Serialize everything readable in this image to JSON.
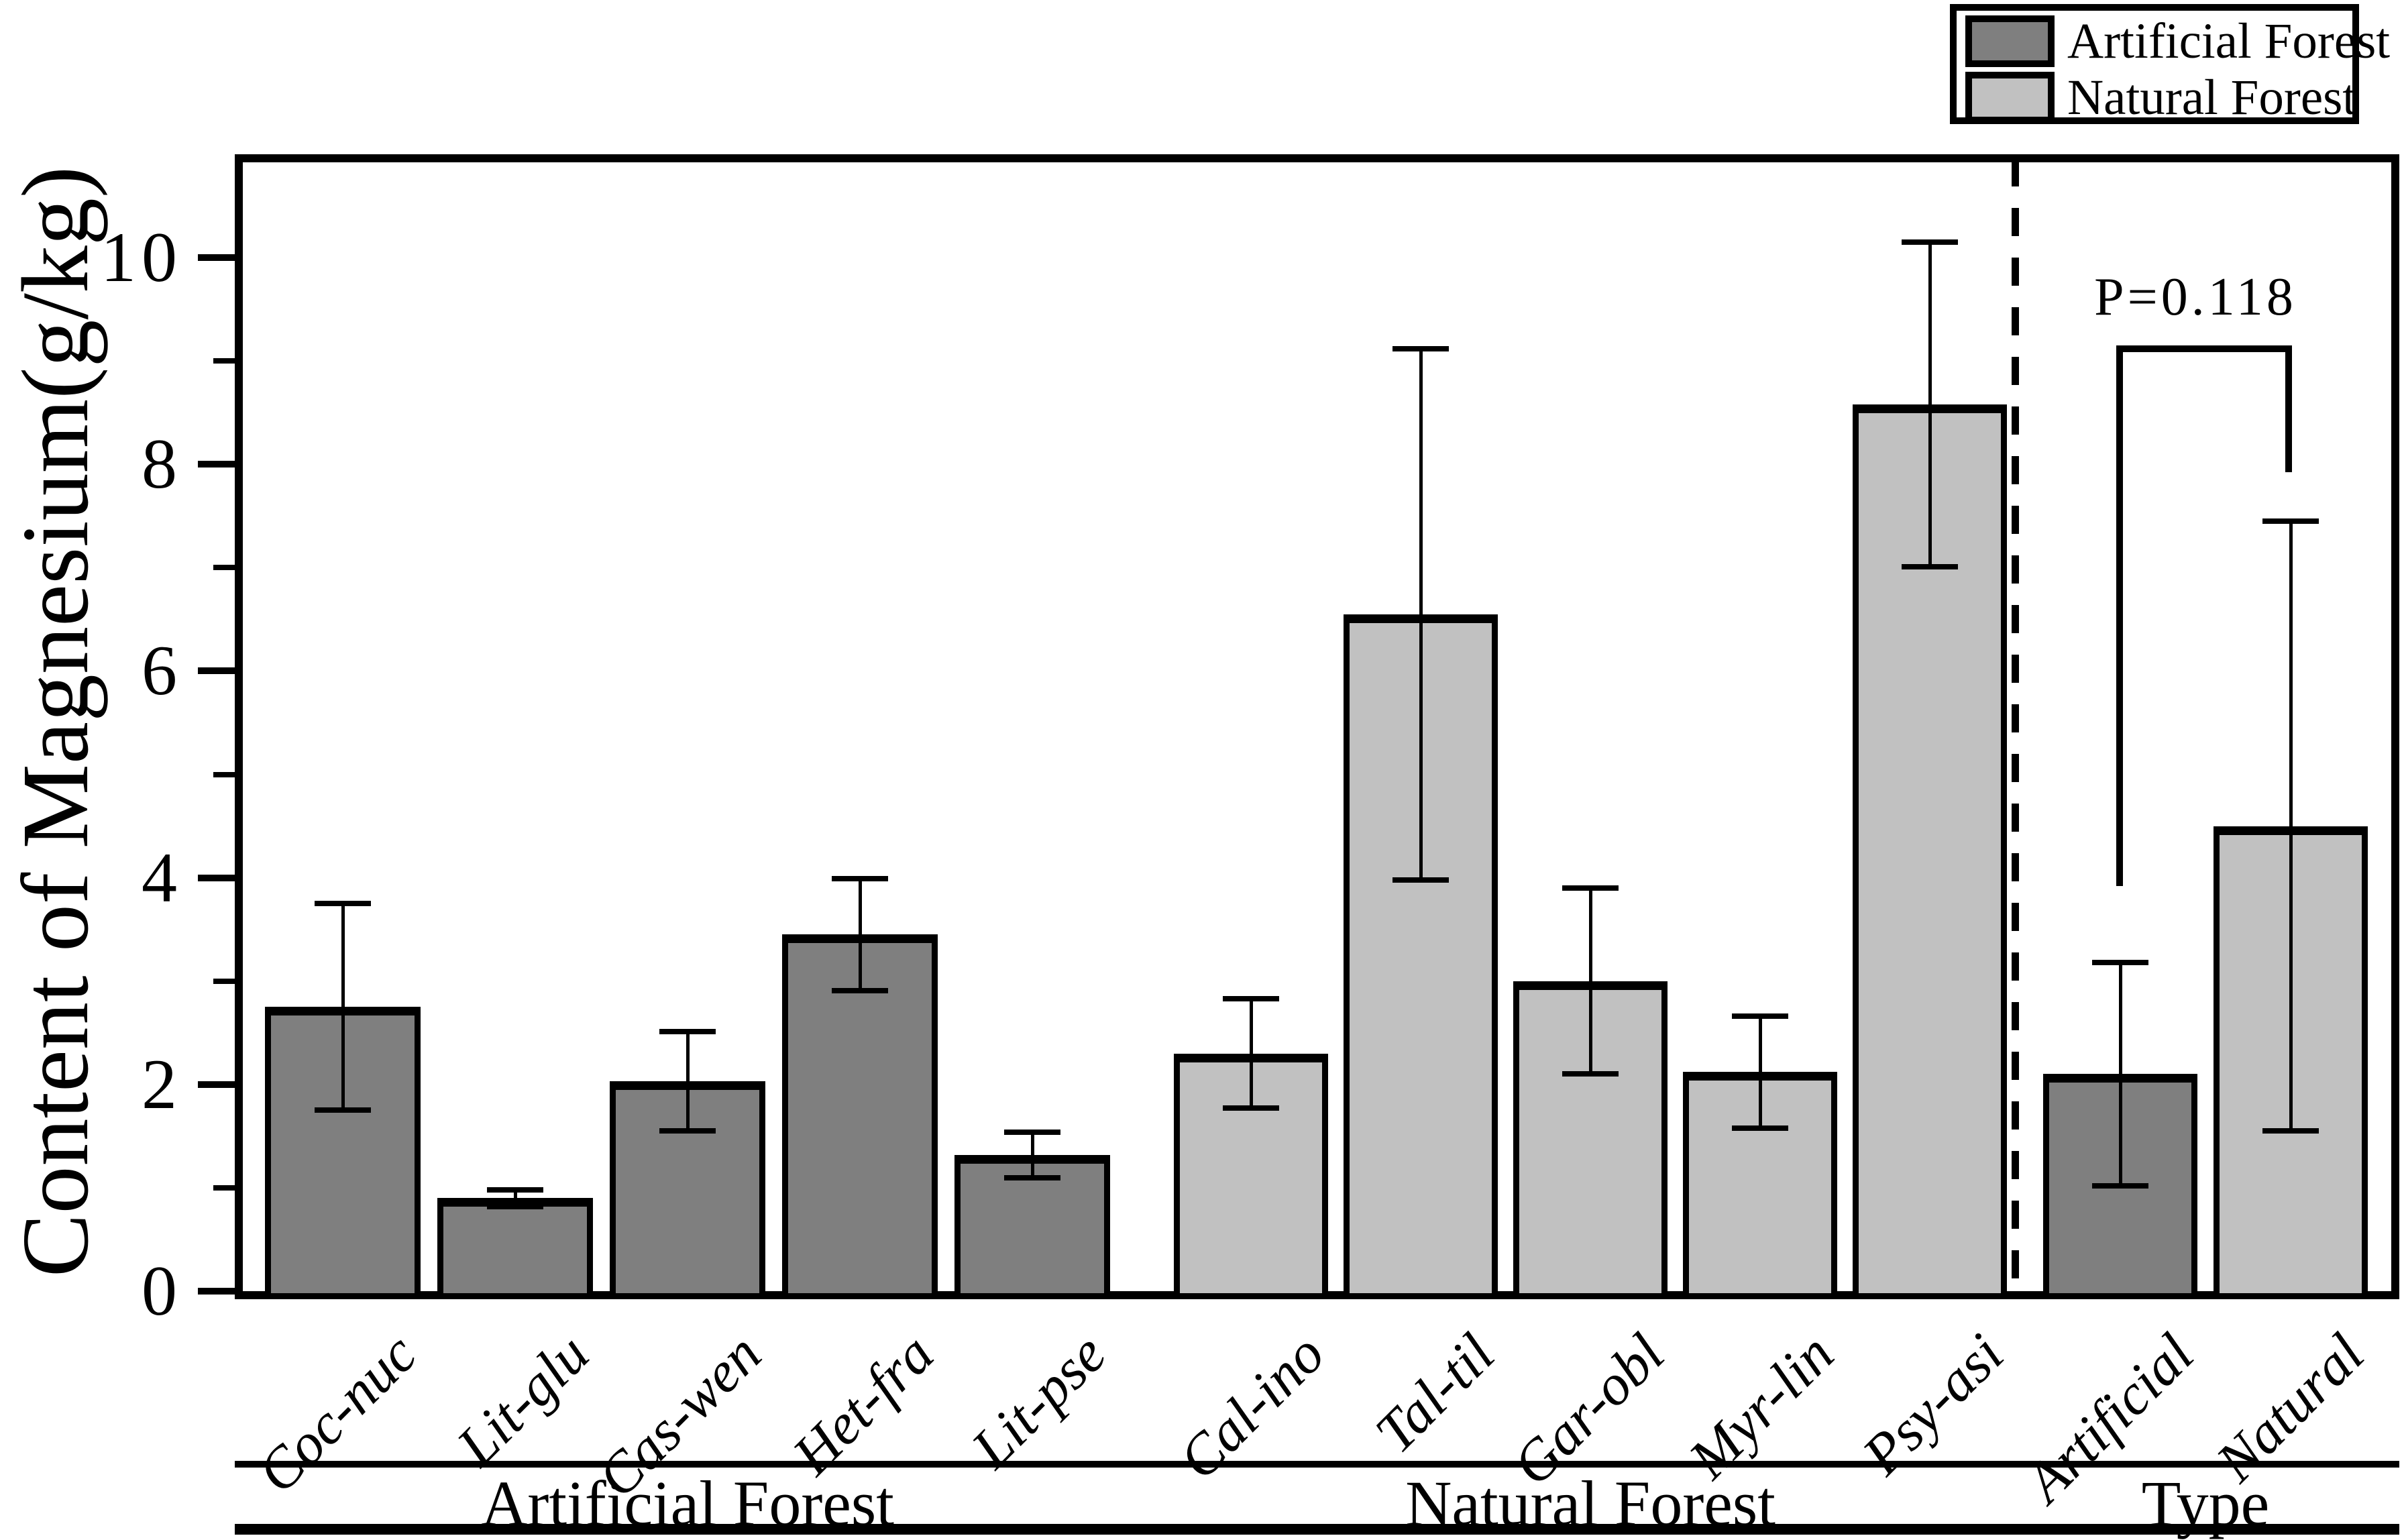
{
  "figure": {
    "background": "#ffffff",
    "accent_black": "#000000",
    "ylabel": "Content of Magnesium(g/kg)",
    "p_annotation": "P=0.118",
    "legend": {
      "items": [
        {
          "label": "Artificial Forest",
          "color": "#7f7f7f"
        },
        {
          "label": "Natural Forest",
          "color": "#c1c1c1"
        }
      ]
    }
  },
  "chart_data": {
    "type": "bar",
    "title": "",
    "xlabel": "",
    "ylabel": "Content of Magnesium(g/kg)",
    "ylim": [
      0,
      11
    ],
    "yticks": [
      0,
      2,
      4,
      6,
      8,
      10
    ],
    "minor_yticks": [
      1,
      3,
      5,
      7,
      9
    ],
    "grid": false,
    "legend_position": "top-right",
    "legend": [
      {
        "name": "Artificial Forest",
        "color": "#7f7f7f"
      },
      {
        "name": "Natural Forest",
        "color": "#c1c1c1"
      }
    ],
    "annotation": {
      "text": "P=0.118",
      "between": [
        "Artificial",
        "Natural"
      ]
    },
    "categories": [
      "Coc-nuc",
      "Lit-glu",
      "Cas-wen",
      "Het-fra",
      "Lit-pse",
      "Cal-ino",
      "Tal-til",
      "Gar-obl",
      "Myr-lin",
      "Psy-asi",
      "Artificial",
      "Natural"
    ],
    "values": [
      2.75,
      0.9,
      2.03,
      3.45,
      1.32,
      2.3,
      6.55,
      3.0,
      2.12,
      8.58,
      2.1,
      4.5
    ],
    "errors": [
      1.0,
      0.08,
      0.48,
      0.54,
      0.22,
      0.53,
      2.57,
      0.9,
      0.54,
      1.57,
      1.08,
      2.95
    ],
    "bar_series": [
      "Artificial Forest",
      "Artificial Forest",
      "Artificial Forest",
      "Artificial Forest",
      "Artificial Forest",
      "Natural Forest",
      "Natural Forest",
      "Natural Forest",
      "Natural Forest",
      "Natural Forest",
      "Artificial Forest",
      "Natural Forest"
    ],
    "groups": [
      {
        "label": "Artificial Forest",
        "start": 0,
        "count": 5
      },
      {
        "label": "Natural Forest",
        "start": 5,
        "count": 5
      },
      {
        "label": "Type",
        "start": 10,
        "count": 2
      }
    ]
  }
}
